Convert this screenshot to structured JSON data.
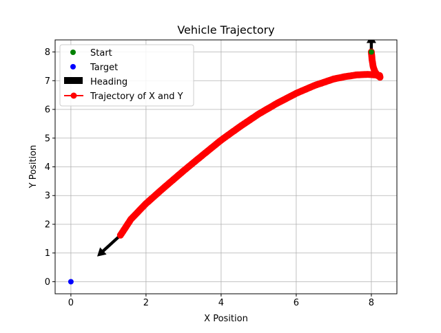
{
  "chart_data": {
    "type": "line",
    "title": "Vehicle Trajectory",
    "xlabel": "X Position",
    "ylabel": "Y Position",
    "xlim": [
      -0.42,
      8.68
    ],
    "ylim": [
      -0.42,
      8.42
    ],
    "xticks": [
      0,
      2,
      4,
      6,
      8
    ],
    "yticks": [
      0,
      1,
      2,
      3,
      4,
      5,
      6,
      7,
      8
    ],
    "grid": true,
    "legend": {
      "position": "upper-left",
      "entries": [
        "Start",
        "Target",
        "Heading",
        "Trajectory of X and Y"
      ]
    },
    "start": {
      "label": "Start",
      "x": 8.0,
      "y": 8.0,
      "color": "#008000"
    },
    "target": {
      "label": "Target",
      "x": 0.0,
      "y": 0.0,
      "color": "#0000ff"
    },
    "heading": {
      "label": "Heading",
      "color": "#000000",
      "arrows": [
        {
          "x": 8.0,
          "y": 8.0,
          "dx": 0.0,
          "dy": 0.6
        },
        {
          "x": 1.32,
          "y": 1.62,
          "dx": -0.62,
          "dy": -0.74
        }
      ]
    },
    "series": [
      {
        "name": "Trajectory of X and Y",
        "color": "#ff0000",
        "x": [
          8.0,
          8.02,
          8.05,
          8.1,
          8.17,
          8.23,
          8.22,
          8.1,
          7.9,
          7.6,
          7.3,
          7.0,
          6.5,
          6.0,
          5.5,
          5.0,
          4.5,
          4.0,
          3.5,
          3.0,
          2.5,
          2.0,
          1.6,
          1.32
        ],
        "y": [
          8.0,
          7.72,
          7.48,
          7.3,
          7.18,
          7.12,
          7.18,
          7.2,
          7.22,
          7.2,
          7.14,
          7.06,
          6.84,
          6.56,
          6.22,
          5.84,
          5.4,
          4.93,
          4.4,
          3.86,
          3.3,
          2.72,
          2.18,
          1.62
        ]
      }
    ]
  }
}
